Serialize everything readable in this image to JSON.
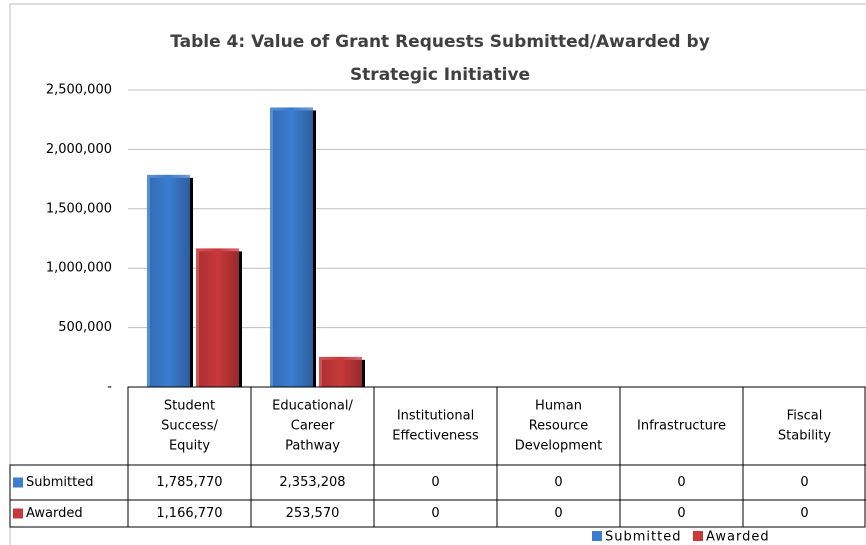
{
  "chart_data": {
    "type": "bar",
    "title": [
      "Table 4:  Value of Grant Requests Submitted/Awarded by",
      "Strategic Initiative"
    ],
    "categories": [
      [
        "Student",
        "Success/",
        "Equity"
      ],
      [
        "Educational/",
        "Career",
        "Pathway"
      ],
      [
        "Institutional",
        "Effectiveness"
      ],
      [
        "Human",
        "Resource",
        "Development"
      ],
      [
        "Infrastructure"
      ],
      [
        "Fiscal",
        "Stability"
      ]
    ],
    "series": [
      {
        "name": "Submitted",
        "color": "#3b7dd0",
        "values": [
          1785770,
          2353208,
          0,
          0,
          0,
          0
        ],
        "value_labels": [
          "1,785,770",
          "2,353,208",
          "0",
          "0",
          "0",
          "0"
        ]
      },
      {
        "name": "Awarded",
        "color": "#c8383a",
        "values": [
          1166770,
          253570,
          0,
          0,
          0,
          0
        ],
        "value_labels": [
          "1,166,770",
          "253,570",
          "0",
          "0",
          "0",
          "0"
        ]
      }
    ],
    "ylim": [
      0,
      2500000
    ],
    "yticks": [
      {
        "value": 0,
        "label": "-"
      },
      {
        "value": 500000,
        "label": "500,000"
      },
      {
        "value": 1000000,
        "label": "1,000,000"
      },
      {
        "value": 1500000,
        "label": "1,500,000"
      },
      {
        "value": 2000000,
        "label": "2,000,000"
      },
      {
        "value": 2500000,
        "label": "2,500,000"
      }
    ],
    "grid": true,
    "legend": "bottom-right"
  }
}
